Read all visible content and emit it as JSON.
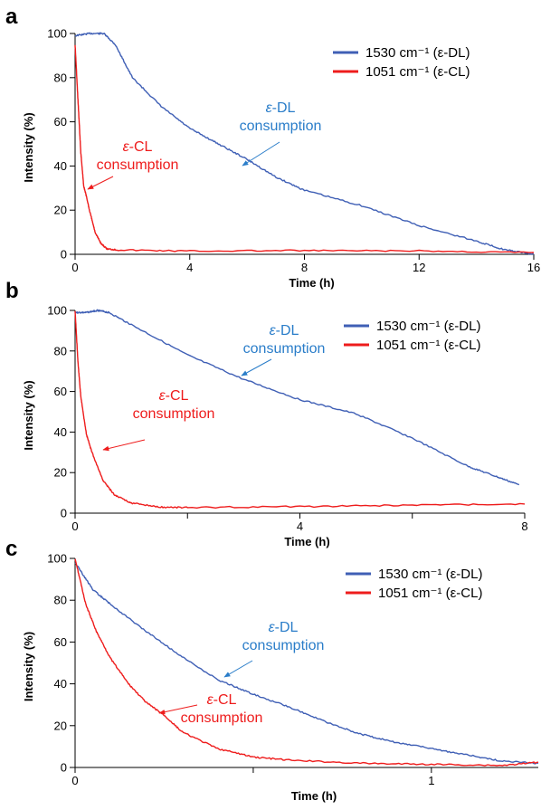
{
  "colors": {
    "dl": "#3f5fb5",
    "cl": "#ee1c1c",
    "annot_dl": "#2a7dc9",
    "annot_cl": "#ee1c1c"
  },
  "chart_data": [
    {
      "type": "line",
      "panel": "a",
      "xlabel": "Time (h)",
      "ylabel": "Intensity (%)",
      "xlim": [
        0,
        16
      ],
      "ylim": [
        0,
        100
      ],
      "xticks": [
        "0",
        "4",
        "8",
        "12",
        "16"
      ],
      "yticks": [
        "0",
        "20",
        "40",
        "60",
        "80",
        "100"
      ],
      "legend": [
        "1530 cm",
        "1051 cm"
      ],
      "legend_position": "top-right",
      "annotations": [
        {
          "species": "ε",
          "label": "-DL",
          "line2": "consumption",
          "series": "dl"
        },
        {
          "species": "ε",
          "label": "-CL",
          "line2": "consumption",
          "series": "cl"
        }
      ],
      "series": [
        {
          "name": "1530 cm⁻¹ (ε-DL)",
          "key": "dl",
          "x": [
            0,
            0.5,
            1.0,
            1.4,
            2,
            3,
            4,
            5,
            6,
            7,
            8,
            10,
            12,
            14,
            15,
            16
          ],
          "y": [
            99,
            100,
            100,
            95,
            80,
            67,
            57,
            50,
            43,
            35,
            29,
            22,
            13,
            6,
            2,
            0
          ]
        },
        {
          "name": "1051 cm⁻¹ (ε-CL)",
          "key": "cl",
          "x": [
            0,
            0.1,
            0.2,
            0.3,
            0.4,
            0.5,
            0.7,
            0.9,
            1.1,
            1.5,
            4,
            8,
            12,
            16
          ],
          "y": [
            95,
            70,
            46,
            31,
            26,
            20,
            10,
            5,
            2.5,
            2,
            1.5,
            1.7,
            1.5,
            0.8
          ]
        }
      ]
    },
    {
      "type": "line",
      "panel": "b",
      "xlabel": "Time (h)",
      "ylabel": "Intensity (%)",
      "xlim": [
        0,
        8
      ],
      "ylim": [
        0,
        100
      ],
      "xticks": [
        "0",
        "",
        "4",
        "",
        "8"
      ],
      "yticks": [
        "0",
        "20",
        "40",
        "60",
        "80",
        "100"
      ],
      "legend": [
        "1530 cm",
        "1051 cm"
      ],
      "legend_position": "top-right",
      "annotations": [
        {
          "species": "ε",
          "label": "-DL",
          "line2": "consumption",
          "series": "dl"
        },
        {
          "species": "ε",
          "label": "-CL",
          "line2": "consumption",
          "series": "cl"
        }
      ],
      "series": [
        {
          "name": "1530 cm⁻¹ (ε-DL)",
          "key": "dl",
          "x": [
            0,
            0.2,
            0.4,
            0.6,
            1,
            2,
            3,
            4,
            5,
            6,
            7,
            7.5,
            7.9
          ],
          "y": [
            99,
            99,
            100,
            99,
            93,
            78,
            66,
            56,
            49,
            37,
            23,
            18,
            14
          ]
        },
        {
          "name": "1051 cm⁻¹ (ε-CL)",
          "key": "cl",
          "x": [
            0,
            0.05,
            0.1,
            0.2,
            0.3,
            0.5,
            0.7,
            1,
            1.5,
            2,
            4,
            6,
            8
          ],
          "y": [
            100,
            75,
            58,
            39,
            30,
            16,
            9,
            5,
            3,
            2.8,
            3.2,
            4,
            4.5
          ]
        }
      ]
    },
    {
      "type": "line",
      "panel": "c",
      "xlabel": "Time (h)",
      "ylabel": "Intensity (%)",
      "xlim": [
        0,
        1.3
      ],
      "ylim": [
        0,
        100
      ],
      "xticks": [
        "0",
        "",
        "1"
      ],
      "yticks": [
        "0",
        "20",
        "40",
        "60",
        "80",
        "100"
      ],
      "legend": [
        "1530 cm",
        "1051 cm"
      ],
      "legend_position": "top-right",
      "annotations": [
        {
          "species": "ε",
          "label": "-DL",
          "line2": "consumption",
          "series": "dl"
        },
        {
          "species": "ε",
          "label": "-CL",
          "line2": "consumption",
          "series": "cl"
        }
      ],
      "series": [
        {
          "name": "1530 cm⁻¹ (ε-DL)",
          "key": "dl",
          "x": [
            0,
            0.05,
            0.1,
            0.2,
            0.3,
            0.4,
            0.5,
            0.6,
            0.7,
            0.8,
            0.9,
            1.0,
            1.1,
            1.2,
            1.3
          ],
          "y": [
            98,
            85,
            78,
            65,
            53,
            42,
            35,
            29,
            22,
            16,
            12,
            9,
            6,
            3,
            2
          ]
        },
        {
          "name": "1051 cm⁻¹ (ε-CL)",
          "key": "cl",
          "x": [
            0,
            0.03,
            0.06,
            0.1,
            0.15,
            0.2,
            0.25,
            0.3,
            0.4,
            0.5,
            0.6,
            0.8,
            1.0,
            1.2,
            1.3
          ],
          "y": [
            100,
            78,
            65,
            52,
            40,
            31,
            25,
            17,
            9,
            5,
            3.5,
            2,
            1.5,
            1,
            2.5
          ]
        }
      ]
    }
  ]
}
